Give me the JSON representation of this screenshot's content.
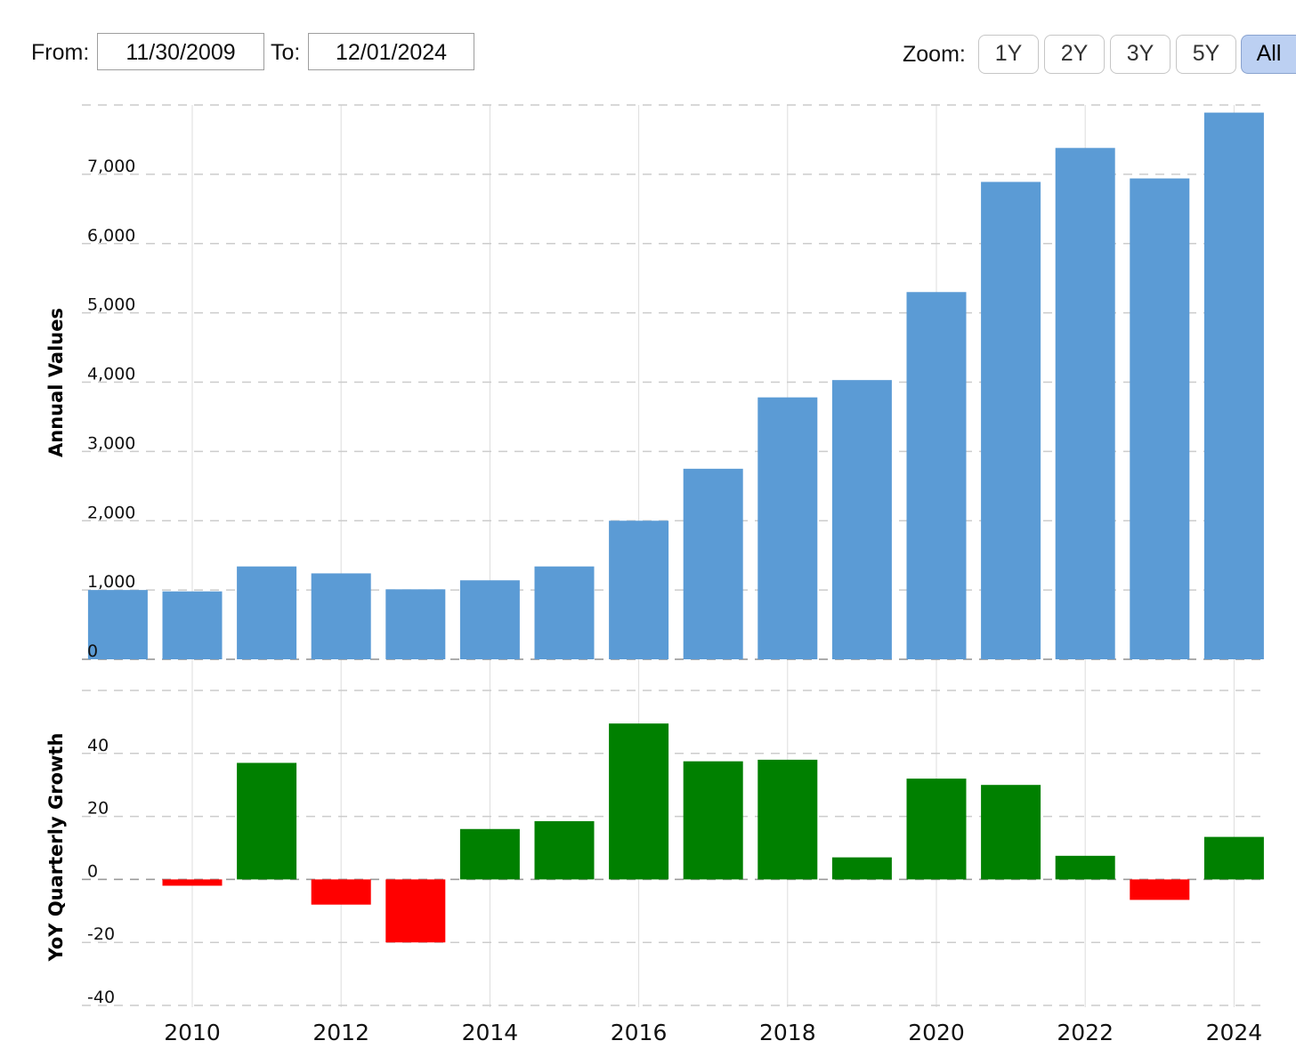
{
  "toolbar": {
    "from_label": "From:",
    "from_value": "11/30/2009",
    "to_label": "To:",
    "to_value": "12/01/2024",
    "zoom_label": "Zoom:",
    "zoom_options": [
      "1Y",
      "2Y",
      "3Y",
      "5Y",
      "All"
    ],
    "zoom_selected": "All"
  },
  "colors": {
    "annual_bar": "#5b9bd5",
    "growth_positive": "#008000",
    "growth_negative": "#ff0000",
    "grid": "#cccccc"
  },
  "chart_data": [
    {
      "type": "bar",
      "ylabel": "Annual Values",
      "categories": [
        "2009",
        "2010",
        "2011",
        "2012",
        "2013",
        "2014",
        "2015",
        "2016",
        "2017",
        "2018",
        "2019",
        "2020",
        "2021",
        "2022",
        "2023",
        "2024"
      ],
      "values": [
        1000,
        980,
        1340,
        1240,
        1010,
        1140,
        1340,
        2000,
        2750,
        3780,
        4030,
        5300,
        6890,
        7380,
        6940,
        7890
      ],
      "ylim": [
        0,
        8000
      ],
      "yticks": [
        0,
        1000,
        2000,
        3000,
        4000,
        5000,
        6000,
        7000
      ],
      "ytick_labels": [
        "0",
        "1,000",
        "2,000",
        "3,000",
        "4,000",
        "5,000",
        "6,000",
        "7,000"
      ],
      "grid": true
    },
    {
      "type": "bar",
      "ylabel": "YoY Quarterly Growth",
      "categories": [
        "2009",
        "2010",
        "2011",
        "2012",
        "2013",
        "2014",
        "2015",
        "2016",
        "2017",
        "2018",
        "2019",
        "2020",
        "2021",
        "2022",
        "2023",
        "2024"
      ],
      "values": [
        0,
        -2,
        37,
        -8,
        -20,
        16,
        18.5,
        49.5,
        37.5,
        38,
        7,
        32,
        30,
        7.5,
        -6.5,
        13.5
      ],
      "ylim": [
        -40,
        60
      ],
      "yticks": [
        -40,
        -20,
        0,
        20,
        40
      ],
      "ytick_labels": [
        "-40",
        "-20",
        "0",
        "20",
        "40"
      ],
      "grid": true
    }
  ],
  "x_axis": {
    "ticks": [
      2010,
      2012,
      2014,
      2016,
      2018,
      2020,
      2022,
      2024
    ],
    "tick_labels": [
      "2010",
      "2012",
      "2014",
      "2016",
      "2018",
      "2020",
      "2022",
      "2024"
    ]
  }
}
